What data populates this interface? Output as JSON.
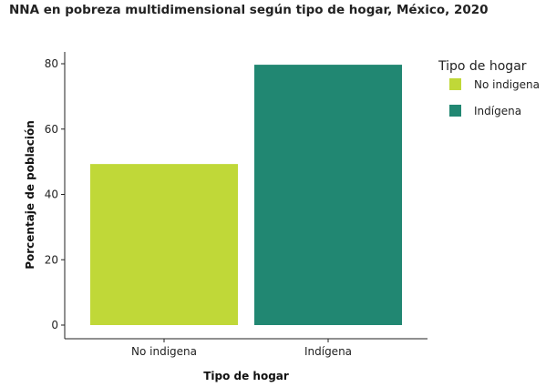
{
  "chart_data": {
    "type": "bar",
    "title": "NNA en pobreza multidimensional según tipo de hogar, México, 2020",
    "xlabel": "Tipo de hogar",
    "ylabel": "Porcentaje de población",
    "categories": [
      "No indigena",
      "Indígena"
    ],
    "values": [
      49.3,
      79.7
    ],
    "colors": [
      "#c0d838",
      "#218772"
    ],
    "ylim": [
      0,
      84
    ],
    "yticks": [
      0,
      20,
      40,
      60,
      80
    ],
    "grid": false,
    "legend": {
      "title": "Tipo de hogar",
      "position": "right",
      "entries": [
        "No indigena",
        "Indígena"
      ]
    }
  }
}
